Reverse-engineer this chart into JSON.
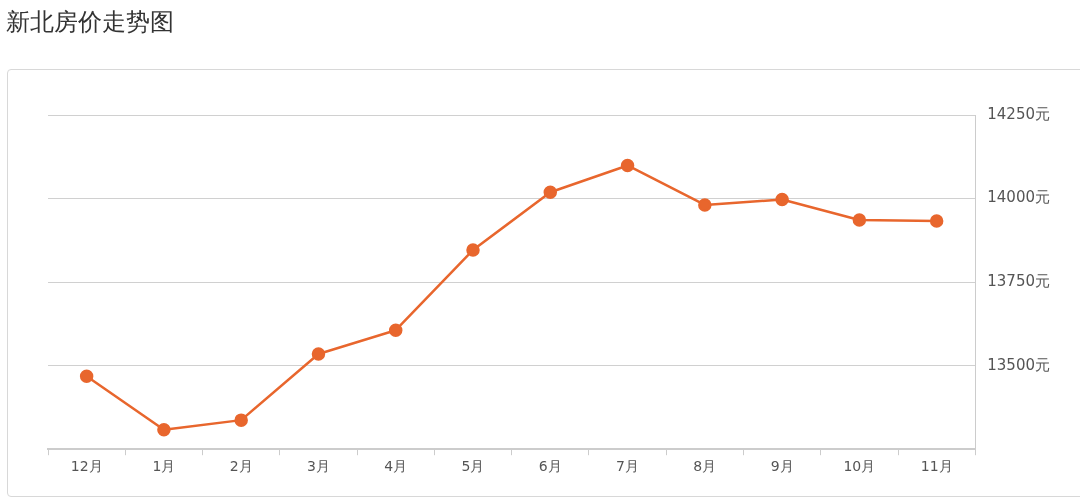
{
  "chart_data": {
    "type": "line",
    "title": "新北房价走势图",
    "categories": [
      "12月",
      "1月",
      "2月",
      "3月",
      "4月",
      "5月",
      "6月",
      "7月",
      "8月",
      "9月",
      "10月",
      "11月"
    ],
    "series": [
      {
        "color": "#e8662d",
        "values": [
          13468,
          13308,
          13337,
          13535,
          13606,
          13846,
          14019,
          14099,
          13981,
          13997,
          13936,
          13933
        ]
      }
    ],
    "ylim": [
      13250,
      14250
    ],
    "yticks": [
      {
        "value": 13250,
        "label": null
      },
      {
        "value": 13500,
        "label": "13500元"
      },
      {
        "value": 13750,
        "label": "13750元"
      },
      {
        "value": 14000,
        "label": "14000元"
      },
      {
        "value": 14250,
        "label": "14250元"
      }
    ],
    "grid": "y",
    "marker": "circle",
    "line_style": "solid",
    "legend": false
  }
}
